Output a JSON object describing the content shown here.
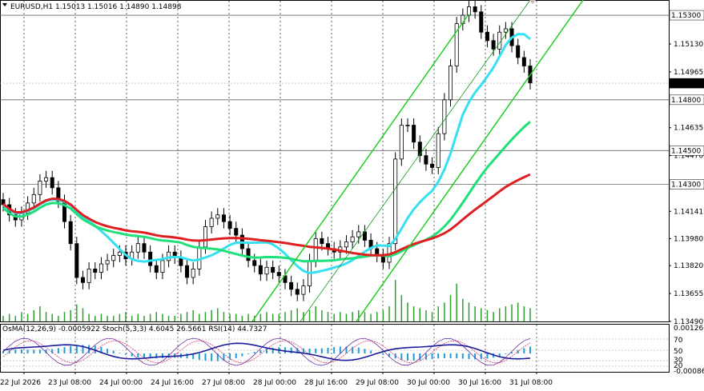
{
  "chart_header": {
    "symbol": "EURUSD,H1",
    "ohlc": "1.15013 1.15016 1.14890 1.14898"
  },
  "indicator_header": {
    "osma": "OsMA(12,26,9) -0.0005922",
    "stoch": "Stoch(5,3,3) 4.6045 26.5661",
    "rsi": "RSI(14) 44.7327"
  },
  "chart_data": {
    "type": "candlestick",
    "price_axis_ticks": [
      "1.15300",
      "1.15130",
      "1.14965",
      "1.14800",
      "1.14635",
      "1.14470",
      "1.14300",
      "1.14141",
      "1.13980",
      "1.13820",
      "1.13655",
      "1.13490"
    ],
    "price_labels": {
      "level_15300": "1.15300",
      "current": "1.14898",
      "level_14800": "1.14800",
      "level_14500": "1.14500",
      "level_14300": "1.14300"
    },
    "indicator_axis_ticks": [
      "0.001261",
      "70",
      "50",
      "30",
      "20",
      "-0.000862"
    ],
    "time_labels": [
      "22 Jul 2026",
      "23 Jul 08:00",
      "24 Jul 00:00",
      "24 Jul 16:00",
      "27 Jul 08:00",
      "28 Jul 00:00",
      "28 Jul 16:00",
      "29 Jul 08:00",
      "30 Jul 00:00",
      "30 Jul 16:00",
      "31 Jul 08:00"
    ],
    "ylim": [
      1.1349,
      1.1539
    ],
    "horizontal_levels": [
      1.153,
      1.148,
      1.145,
      1.143
    ],
    "closes": [
      1.1418,
      1.1412,
      1.1409,
      1.1413,
      1.1419,
      1.1424,
      1.1432,
      1.1434,
      1.1428,
      1.142,
      1.1408,
      1.1395,
      1.1375,
      1.1372,
      1.138,
      1.1378,
      1.1383,
      1.1385,
      1.1388,
      1.139,
      1.1386,
      1.139,
      1.1395,
      1.139,
      1.1382,
      1.1378,
      1.1385,
      1.139,
      1.1387,
      1.1382,
      1.1375,
      1.138,
      1.1393,
      1.1405,
      1.141,
      1.1412,
      1.1408,
      1.1404,
      1.14,
      1.1392,
      1.1385,
      1.1382,
      1.1377,
      1.1381,
      1.1378,
      1.1376,
      1.1372,
      1.1368,
      1.1365,
      1.137,
      1.1385,
      1.1398,
      1.1395,
      1.1392,
      1.139,
      1.1393,
      1.1396,
      1.1399,
      1.1402,
      1.1397,
      1.1392,
      1.1388,
      1.1384,
      1.1395,
      1.1445,
      1.1465,
      1.1465,
      1.1455,
      1.1447,
      1.1442,
      1.144,
      1.146,
      1.148,
      1.15,
      1.1525,
      1.153,
      1.1535,
      1.1532,
      1.152,
      1.1515,
      1.151,
      1.152,
      1.1522,
      1.1512,
      1.1505,
      1.15,
      1.149
    ],
    "volumes": [
      3,
      4,
      3,
      5,
      4,
      6,
      8,
      5,
      4,
      3,
      5,
      6,
      9,
      7,
      4,
      3,
      4,
      3,
      3,
      4,
      5,
      3,
      4,
      3,
      4,
      5,
      4,
      3,
      3,
      4,
      5,
      6,
      4,
      5,
      6,
      7,
      5,
      4,
      4,
      3,
      4,
      3,
      4,
      5,
      4,
      4,
      5,
      6,
      7,
      5,
      6,
      8,
      6,
      5,
      4,
      5,
      4,
      5,
      6,
      5,
      4,
      5,
      6,
      8,
      22,
      14,
      10,
      8,
      7,
      6,
      5,
      8,
      10,
      14,
      20,
      12,
      10,
      8,
      7,
      6,
      5,
      7,
      8,
      9,
      10,
      8,
      7
    ]
  }
}
